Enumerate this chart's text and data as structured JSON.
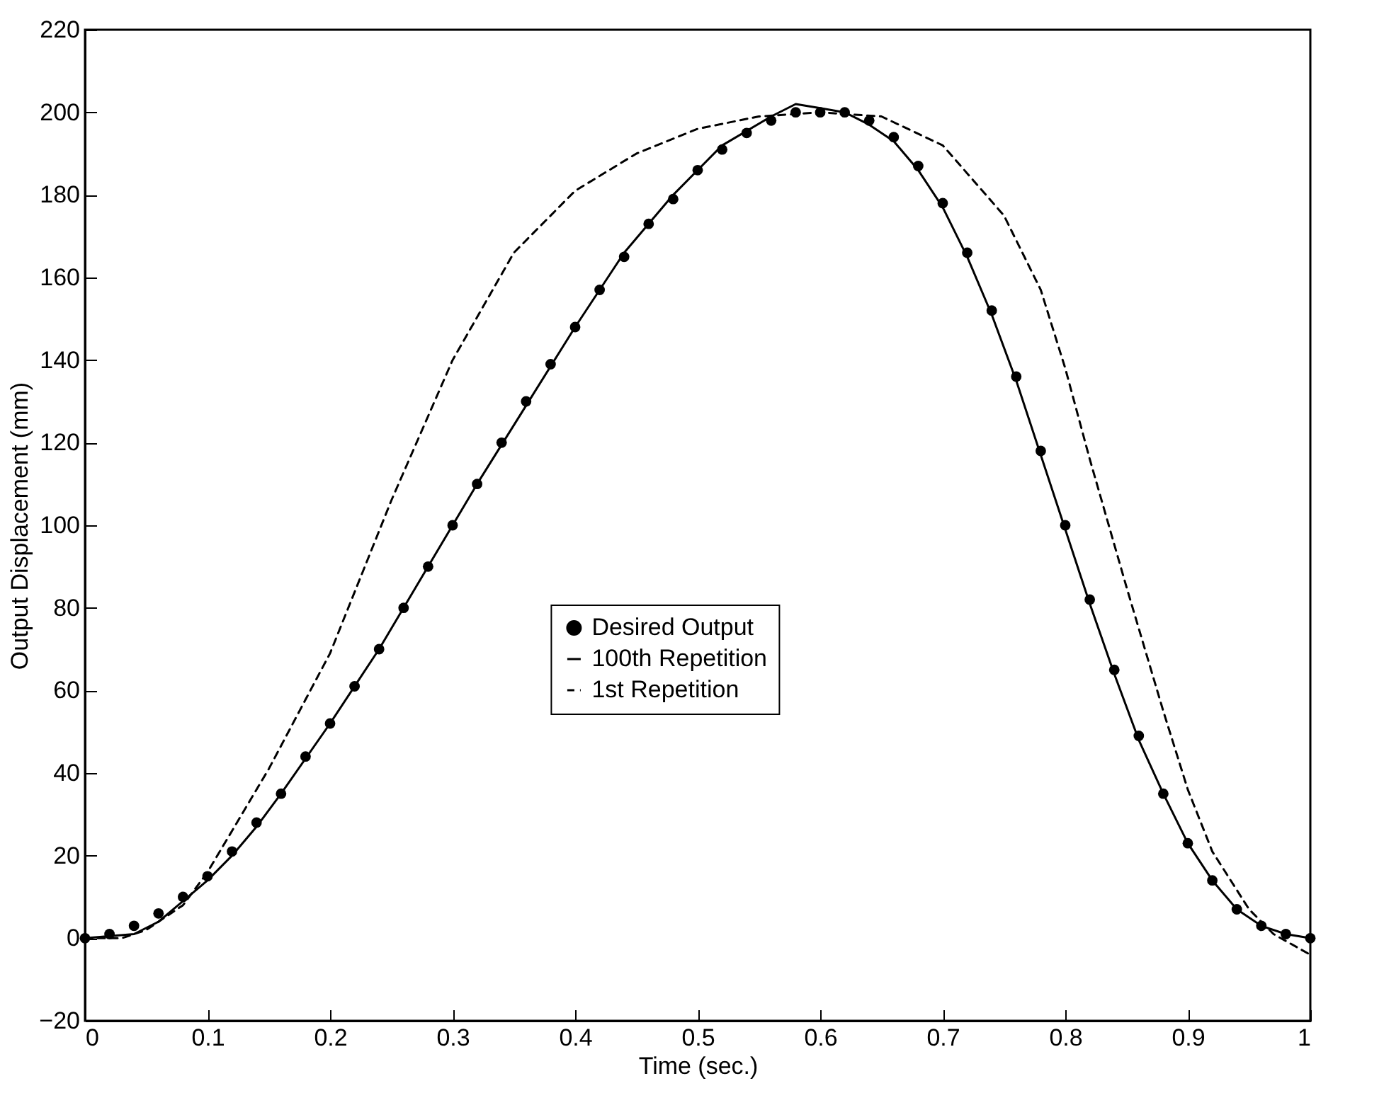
{
  "chart_data": {
    "type": "line",
    "xlabel": "Time  (sec.)",
    "ylabel": "Output Displacement  (mm)",
    "xlim": [
      0,
      1
    ],
    "xticks": [
      0,
      0.1,
      0.2,
      0.3,
      0.4,
      0.5,
      0.6,
      0.7,
      0.8,
      0.9,
      1
    ],
    "ylim": [
      -20,
      220
    ],
    "yticks": [
      -20,
      0,
      20,
      40,
      60,
      80,
      100,
      120,
      140,
      160,
      180,
      200,
      220
    ],
    "grid": false,
    "legend": "center",
    "series": [
      {
        "name": "Desired Output",
        "type": "scatter",
        "marker": "circle",
        "color": "#000000",
        "x": [
          0,
          0.02,
          0.04,
          0.06,
          0.08,
          0.1,
          0.12,
          0.14,
          0.16,
          0.18,
          0.2,
          0.22,
          0.24,
          0.26,
          0.28,
          0.3,
          0.32,
          0.34,
          0.36,
          0.38,
          0.4,
          0.42,
          0.44,
          0.46,
          0.48,
          0.5,
          0.52,
          0.54,
          0.56,
          0.58,
          0.6,
          0.62,
          0.64,
          0.66,
          0.68,
          0.7,
          0.72,
          0.74,
          0.76,
          0.78,
          0.8,
          0.82,
          0.84,
          0.86,
          0.88,
          0.9,
          0.92,
          0.94,
          0.96,
          0.98,
          1
        ],
        "values": [
          0,
          1,
          3,
          6,
          10,
          15,
          21,
          28,
          35,
          44,
          52,
          61,
          70,
          80,
          90,
          100,
          110,
          120,
          130,
          139,
          148,
          157,
          165,
          173,
          179,
          186,
          191,
          195,
          198,
          200,
          200,
          200,
          198,
          194,
          187,
          178,
          166,
          152,
          136,
          118,
          100,
          82,
          65,
          49,
          35,
          23,
          14,
          7,
          3,
          1,
          0
        ]
      },
      {
        "name": "100th Repetition",
        "type": "line",
        "line_style": "solid",
        "color": "#000000",
        "x": [
          0,
          0.04,
          0.06,
          0.08,
          0.1,
          0.12,
          0.14,
          0.16,
          0.2,
          0.24,
          0.28,
          0.32,
          0.36,
          0.4,
          0.44,
          0.48,
          0.52,
          0.56,
          0.58,
          0.6,
          0.62,
          0.64,
          0.66,
          0.68,
          0.7,
          0.72,
          0.74,
          0.76,
          0.78,
          0.8,
          0.82,
          0.84,
          0.86,
          0.88,
          0.9,
          0.92,
          0.94,
          0.96,
          0.98,
          1
        ],
        "values": [
          0,
          1,
          4,
          9,
          14,
          20,
          27,
          35,
          52,
          70,
          90,
          110,
          129,
          148,
          166,
          180,
          192,
          199,
          202,
          201,
          200,
          197,
          193,
          186,
          177,
          165,
          151,
          135,
          117,
          99,
          81,
          64,
          48,
          35,
          23,
          14,
          7,
          3,
          1,
          0
        ]
      },
      {
        "name": "1st Repetition",
        "type": "line",
        "line_style": "dashed",
        "color": "#000000",
        "x": [
          0,
          0.03,
          0.05,
          0.08,
          0.1,
          0.12,
          0.15,
          0.2,
          0.25,
          0.3,
          0.35,
          0.4,
          0.45,
          0.5,
          0.55,
          0.6,
          0.65,
          0.7,
          0.75,
          0.78,
          0.8,
          0.82,
          0.85,
          0.88,
          0.9,
          0.92,
          0.95,
          0.97,
          1
        ],
        "values": [
          0,
          0,
          2,
          8,
          16,
          26,
          41,
          69,
          106,
          140,
          166,
          181,
          190,
          196,
          199,
          200,
          199,
          192,
          175,
          157,
          138,
          116,
          85,
          55,
          36,
          21,
          7,
          1,
          -4
        ]
      }
    ]
  }
}
